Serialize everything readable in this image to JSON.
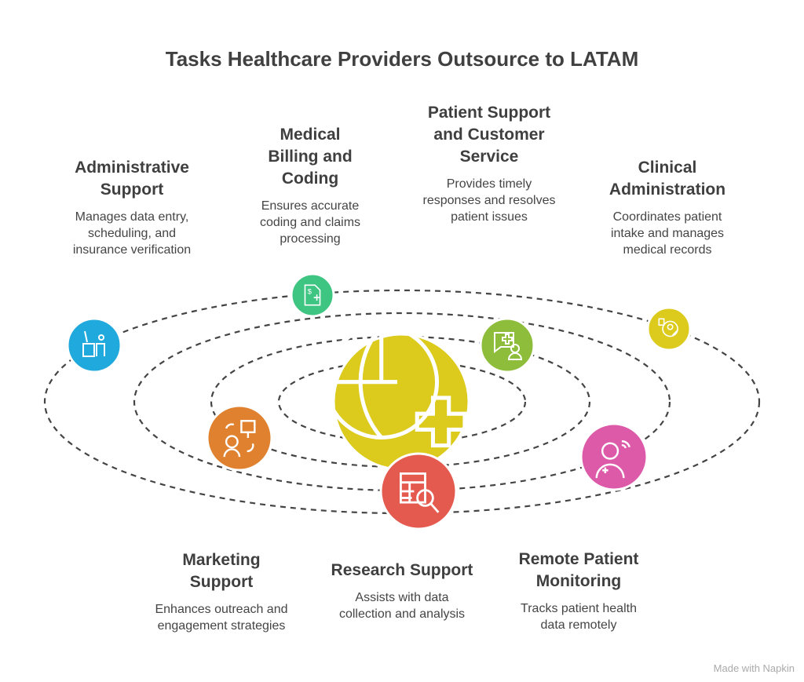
{
  "title": "Tasks Healthcare Providers Outsource to LATAM",
  "items": [
    {
      "title": "Administrative Support",
      "desc": "Manages data entry, scheduling, and insurance verification",
      "color": "#1fa9dc",
      "icon": "desk-worker-icon"
    },
    {
      "title": "Medical Billing and Coding",
      "desc": "Ensures accurate coding and claims processing",
      "color": "#3fc582",
      "icon": "billing-document-icon"
    },
    {
      "title": "Patient Support and Customer Service",
      "desc": "Provides timely responses and resolves patient issues",
      "color": "#8dbd3a",
      "icon": "chat-medical-user-icon"
    },
    {
      "title": "Clinical Administration",
      "desc": "Coordinates patient intake and manages medical records",
      "color": "#dccb1c",
      "icon": "patient-intake-icon"
    },
    {
      "title": "Marketing Support",
      "desc": "Enhances outreach and engagement strategies",
      "color": "#e0812f",
      "icon": "presentation-person-icon"
    },
    {
      "title": "Research Support",
      "desc": "Assists with data collection and analysis",
      "color": "#e55a4f",
      "icon": "table-search-icon"
    },
    {
      "title": "Remote Patient Monitoring",
      "desc": "Tracks patient health data remotely",
      "color": "#dd5aa9",
      "icon": "remote-doctor-icon"
    }
  ],
  "center": {
    "color": "#dccb1c",
    "icon": "globe-medical-icon"
  },
  "watermark": "Made with Napkin"
}
